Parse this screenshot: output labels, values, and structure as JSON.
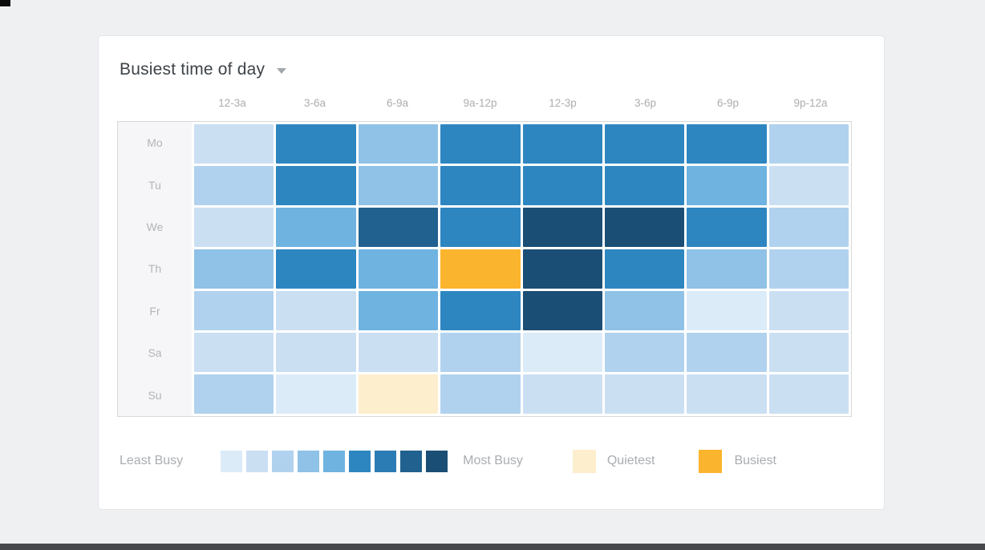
{
  "page": {
    "background_color": "#eff0f2",
    "bottom_bar_color": "#46484c"
  },
  "card": {
    "title": "Busiest time of day"
  },
  "chart_data": {
    "type": "heatmap",
    "title": "Busiest time of day",
    "columns": [
      "12-3a",
      "3-6a",
      "6-9a",
      "9a-12p",
      "12-3p",
      "3-6p",
      "6-9p",
      "9p-12a"
    ],
    "rows": [
      "Mo",
      "Tu",
      "We",
      "Th",
      "Fr",
      "Sa",
      "Su"
    ],
    "scale_levels": [
      "#dcebf8",
      "#cbdff3",
      "#b1d2ee",
      "#8fc2e6",
      "#6fb3e1",
      "#2e86c1",
      "#2b7cb5",
      "#21618f",
      "#1b4e75"
    ],
    "quietest_color": "#fdeecd",
    "busiest_color": "#fbb42d",
    "values": [
      [
        2,
        6,
        4,
        6,
        6,
        6,
        6,
        3
      ],
      [
        3,
        6,
        4,
        6,
        6,
        6,
        5,
        2
      ],
      [
        2,
        5,
        8,
        6,
        9,
        9,
        6,
        3
      ],
      [
        4,
        6,
        5,
        "busiest",
        9,
        6,
        4,
        3
      ],
      [
        3,
        2,
        5,
        6,
        9,
        4,
        1,
        2
      ],
      [
        2,
        2,
        2,
        3,
        1,
        3,
        3,
        2
      ],
      [
        3,
        1,
        "quietest",
        3,
        2,
        2,
        2,
        2
      ]
    ],
    "legend": {
      "least_label": "Least Busy",
      "most_label": "Most Busy",
      "quietest_label": "Quietest",
      "busiest_label": "Busiest"
    }
  }
}
